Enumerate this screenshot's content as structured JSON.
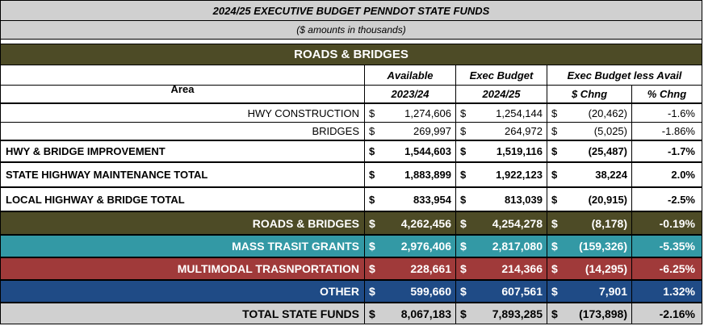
{
  "title": "2024/25 EXECUTIVE BUDGET  PENNDOT STATE FUNDS",
  "subtitle": "($ amounts in thousands)",
  "section_title": "ROADS & BRIDGES",
  "header": {
    "area": "Area",
    "available": "Available",
    "exec_budget": "Exec Budget",
    "exec_less_avail": "Exec Budget less Avail",
    "year_prev": "2023/24",
    "year_next": "2024/25",
    "dollar_chng": "$ Chng",
    "pct_chng": "% Chng"
  },
  "rows": [
    {
      "label": "HWY CONSTRUCTION",
      "cur": "$",
      "avail": "1,274,606",
      "exec": "1,254,144",
      "chg": "(20,462)",
      "pct": "-1.6%"
    },
    {
      "label": "BRIDGES",
      "cur": "$",
      "avail": "269,997",
      "exec": "264,972",
      "chg": "(5,025)",
      "pct": "-1.86%"
    },
    {
      "label": "HWY & BRIDGE IMPROVEMENT",
      "cur": "$",
      "avail": "1,544,603",
      "exec": "1,519,116",
      "chg": "(25,487)",
      "pct": "-1.7%"
    },
    {
      "label": "STATE HIGHWAY MAINTENANCE TOTAL",
      "cur": "$",
      "avail": "1,883,899",
      "exec": "1,922,123",
      "chg": "38,224",
      "pct": "2.0%"
    },
    {
      "label": "LOCAL HIGHWAY & BRIDGE TOTAL",
      "cur": "$",
      "avail": "833,954",
      "exec": "813,039",
      "chg": "(20,915)",
      "pct": "-2.5%"
    },
    {
      "label": "ROADS & BRIDGES",
      "cur": "$",
      "avail": "4,262,456",
      "exec": "4,254,278",
      "chg": "(8,178)",
      "pct": "-0.19%"
    },
    {
      "label": "MASS TRASIT GRANTS",
      "cur": "$",
      "avail": "2,976,406",
      "exec": "2,817,080",
      "chg": "(159,326)",
      "pct": "-5.35%"
    },
    {
      "label": "MULTIMODAL TRASNPORTATION",
      "cur": "$",
      "avail": "228,661",
      "exec": "214,366",
      "chg": "(14,295)",
      "pct": "-6.25%"
    },
    {
      "label": "OTHER",
      "cur": "$",
      "avail": "599,660",
      "exec": "607,561",
      "chg": "7,901",
      "pct": "1.32%"
    },
    {
      "label": "TOTAL STATE FUNDS",
      "cur": "$",
      "avail": "8,067,183",
      "exec": "7,893,285",
      "chg": "(173,898)",
      "pct": "-2.16%"
    }
  ],
  "colors": {
    "olive": "#4d4b26",
    "teal": "#3399a5",
    "red": "#a03a3a",
    "blue": "#1f4b86",
    "gray": "#d0d0d0"
  }
}
